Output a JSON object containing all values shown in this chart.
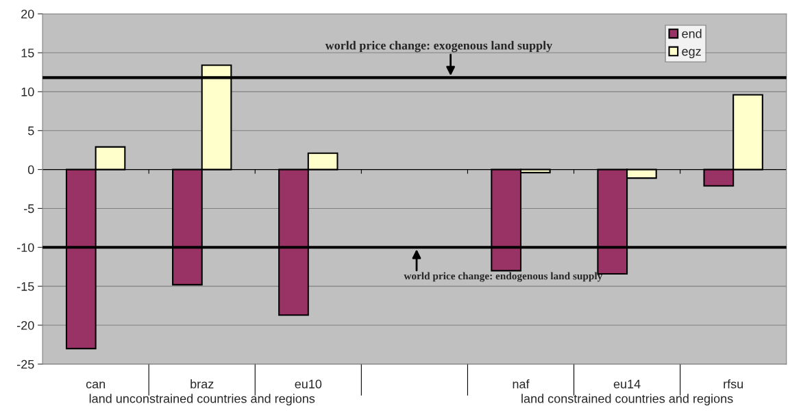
{
  "chart_data": {
    "type": "bar",
    "categories": [
      "can",
      "braz",
      "eu10",
      null,
      "naf",
      "eu14",
      "rfsu"
    ],
    "series": [
      {
        "name": "end",
        "color": "#993366",
        "values": [
          -23,
          -14.8,
          -18.7,
          null,
          -13,
          -13.4,
          -2.1
        ]
      },
      {
        "name": "egz",
        "color": "#ffffcc",
        "values": [
          2.9,
          13.4,
          2.1,
          null,
          -0.4,
          -1.1,
          9.6
        ]
      }
    ],
    "ylim": [
      -25,
      20
    ],
    "yticks": [
      -25,
      -20,
      -15,
      -10,
      -5,
      0,
      5,
      10,
      15,
      20
    ],
    "ref_lines": [
      {
        "axis": "y",
        "value": 11.8,
        "label": "world price change: exogenous land supply",
        "color": "#000000"
      },
      {
        "axis": "y",
        "value": -10,
        "label": "world price change: endogenous land supply",
        "color": "#000000"
      }
    ],
    "annotations": [
      "land unconstrained countries and regions",
      "land constrained countries and regions"
    ],
    "grid": "y",
    "legend": "top right"
  }
}
